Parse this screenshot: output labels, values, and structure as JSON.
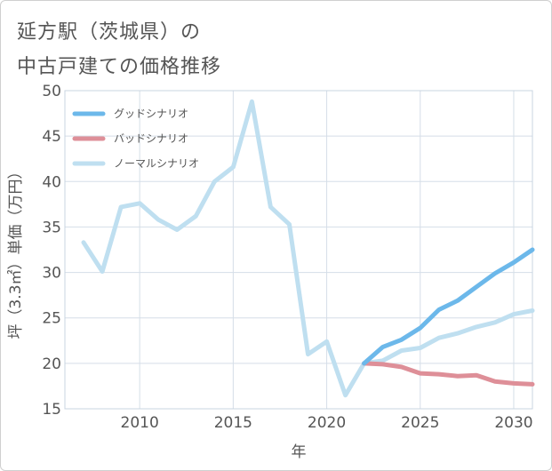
{
  "title_line1": "延方駅（茨城県）の",
  "title_line2": "中古戸建ての価格推移",
  "chart_data": {
    "type": "line",
    "title": "延方駅（茨城県）の中古戸建ての価格推移",
    "xlabel": "年",
    "ylabel": "坪（3.3㎡）単価（万円）",
    "xlim": [
      2006,
      2031
    ],
    "ylim": [
      15,
      50
    ],
    "xticks": [
      2010,
      2015,
      2020,
      2025,
      2030
    ],
    "yticks": [
      15,
      20,
      25,
      30,
      35,
      40,
      45,
      50
    ],
    "grid": true,
    "legend_position": "top-left",
    "series": [
      {
        "name": "グッドシナリオ",
        "color": "#6cb8ea",
        "x": [
          2022,
          2023,
          2024,
          2025,
          2026,
          2027,
          2028,
          2029,
          2030,
          2031
        ],
        "y": [
          20.0,
          21.8,
          22.6,
          23.9,
          25.9,
          26.9,
          28.4,
          29.9,
          31.1,
          32.5
        ]
      },
      {
        "name": "バッドシナリオ",
        "color": "#de8f98",
        "x": [
          2022,
          2023,
          2024,
          2025,
          2026,
          2027,
          2028,
          2029,
          2030,
          2031
        ],
        "y": [
          20.0,
          19.9,
          19.6,
          18.9,
          18.8,
          18.6,
          18.7,
          18.0,
          17.8,
          17.7
        ]
      },
      {
        "name": "ノーマルシナリオ",
        "color": "#bfdff0",
        "x": [
          2007,
          2008,
          2009,
          2010,
          2011,
          2012,
          2013,
          2014,
          2015,
          2016,
          2017,
          2018,
          2019,
          2020,
          2021,
          2022,
          2023,
          2024,
          2025,
          2026,
          2027,
          2028,
          2029,
          2030,
          2031
        ],
        "y": [
          33.3,
          30.1,
          37.2,
          37.6,
          35.8,
          34.7,
          36.2,
          40.0,
          41.6,
          48.8,
          37.2,
          35.3,
          21.0,
          22.4,
          16.5,
          20.0,
          20.3,
          21.4,
          21.7,
          22.8,
          23.3,
          24.0,
          24.5,
          25.4,
          25.8
        ]
      }
    ]
  }
}
